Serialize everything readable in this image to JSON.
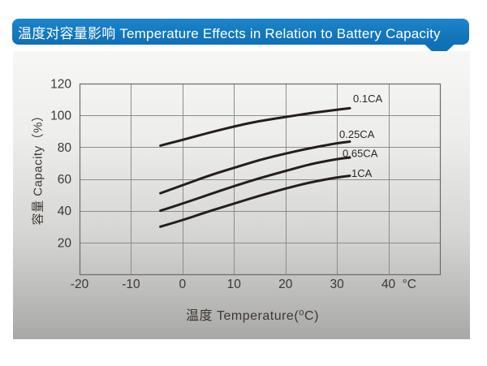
{
  "header": {
    "title": "温度对容量影响 Temperature Effects in Relation to Battery Capacity"
  },
  "chart_data": {
    "type": "line",
    "title": "温度对容量影响 Temperature Effects in Relation to Battery Capacity",
    "xlabel": "温度  Temperature(⁰C)",
    "ylabel": "容量 Capacity（%）",
    "x_axis_unit": "°C",
    "xlim": [
      -20,
      50
    ],
    "ylim": [
      0,
      120
    ],
    "x_ticks": [
      -20,
      -10,
      0,
      10,
      20,
      30,
      40
    ],
    "y_ticks": [
      20,
      40,
      60,
      80,
      100,
      120
    ],
    "grid": true,
    "legend_position": "labels-at-line-ends",
    "colors": {
      "banner_blue": "#1478bd",
      "curve": "#241e1b",
      "grid_line": "#8c8c8c",
      "plot_border": "#6b6b6b",
      "tick_text": "#3d3733",
      "curve_label_text": "#2b2624",
      "panel_gradient_top": "#f7f7f5",
      "panel_gradient_bottom": "#a8a8a6"
    },
    "series": [
      {
        "name": "0.1CA",
        "x": [
          -4.3,
          0,
          5,
          10,
          15,
          20,
          25,
          30,
          32.5
        ],
        "values": [
          81,
          84.5,
          89,
          93,
          96.5,
          99,
          101.5,
          103.5,
          104.5
        ],
        "label_offset": [
          4,
          -12
        ]
      },
      {
        "name": "0.25CA",
        "x": [
          -4.3,
          0,
          5,
          10,
          15,
          20,
          25,
          30,
          32.5
        ],
        "values": [
          51,
          56,
          62,
          67,
          72,
          76,
          79.5,
          82.5,
          83.5
        ],
        "label_offset": [
          -13,
          -9
        ]
      },
      {
        "name": "0.65CA",
        "x": [
          -4.3,
          0,
          5,
          10,
          15,
          20,
          25,
          30,
          32.5
        ],
        "values": [
          40,
          44.5,
          50,
          55.5,
          60.5,
          65,
          69.5,
          72.5,
          73.5
        ],
        "label_offset": [
          -9,
          -5
        ]
      },
      {
        "name": "1CA",
        "x": [
          -4.3,
          0,
          5,
          10,
          15,
          20,
          25,
          30,
          32.5
        ],
        "values": [
          30,
          34,
          39.5,
          44.5,
          49.5,
          54,
          58,
          61,
          62
        ],
        "label_offset": [
          2,
          -3
        ]
      }
    ]
  }
}
